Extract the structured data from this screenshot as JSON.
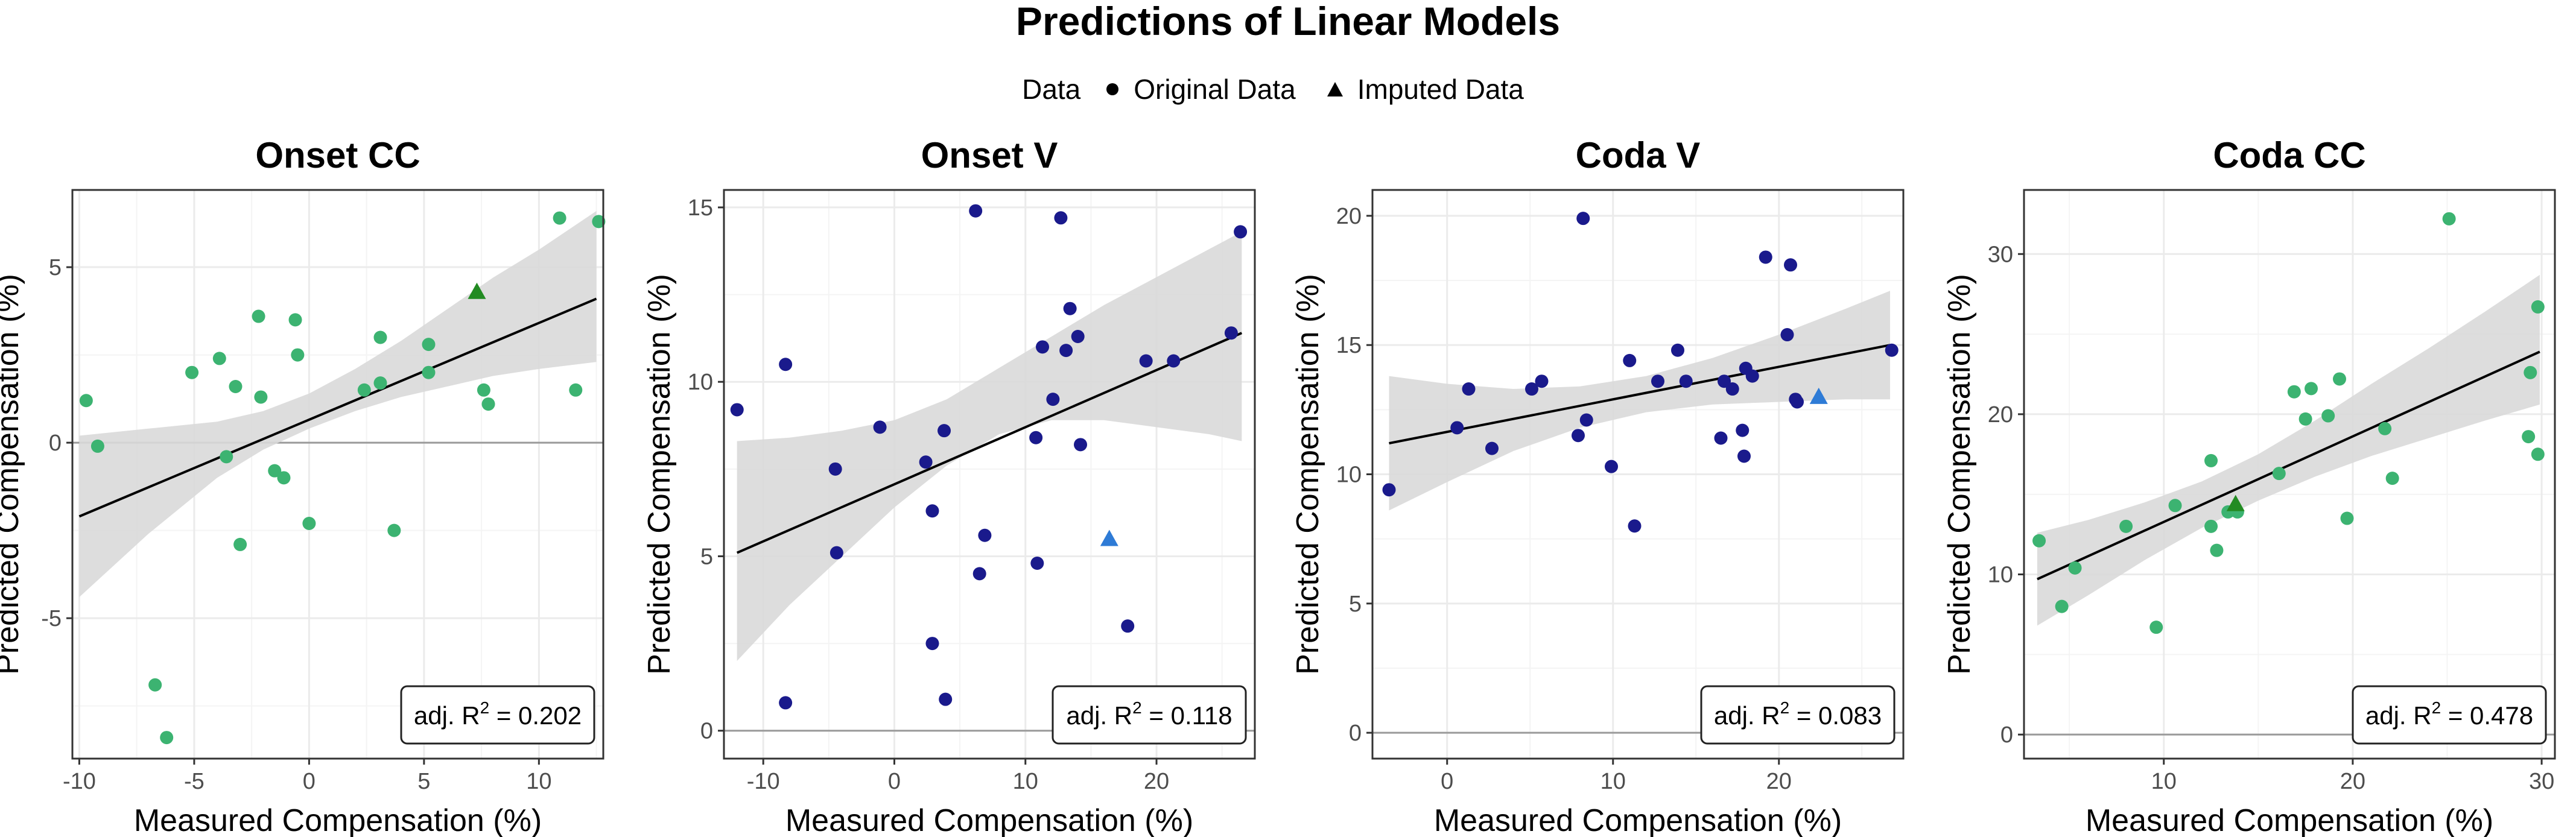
{
  "figure": {
    "title": "Predictions of Linear Models",
    "legend": {
      "title": "Data",
      "items": [
        {
          "label": "Original Data",
          "shape": "circle"
        },
        {
          "label": "Imputed Data",
          "shape": "triangle"
        }
      ]
    }
  },
  "colors": {
    "green": "#3cb371",
    "navy": "#1a1a8c",
    "dark_green": "#228b22",
    "blue": "#2e7bd6",
    "band": "#d9d9d9",
    "grid": "#ebebeb",
    "line": "#000000"
  },
  "chart_data": [
    {
      "type": "scatter",
      "title": "Onset CC",
      "xlabel": "Measured Compensation (%)",
      "ylabel": "Predicted Compensation (%)",
      "xlim": [
        -10.3,
        12.8
      ],
      "ylim": [
        -9,
        7.2
      ],
      "xticks": [
        -10,
        -5,
        0,
        5,
        10
      ],
      "yticks": [
        -5,
        0,
        5
      ],
      "hline": 0,
      "point_color": "#3cb371",
      "imputed_color": "#228b22",
      "r2_label": "adj. R",
      "r2_sup": "2",
      "r2_value": " = 0.202",
      "fit": {
        "x": [
          -10,
          12.5
        ],
        "y": [
          -2.1,
          4.1
        ]
      },
      "band": {
        "x": [
          -10,
          -7,
          -4,
          -2,
          0,
          2,
          4,
          6,
          8,
          10,
          12.5
        ],
        "lower": [
          -4.4,
          -2.6,
          -1.0,
          -0.2,
          0.4,
          0.9,
          1.3,
          1.6,
          1.9,
          2.1,
          2.3
        ],
        "upper": [
          0.2,
          0.4,
          0.6,
          0.9,
          1.4,
          2.1,
          2.9,
          3.8,
          4.7,
          5.5,
          6.6
        ]
      },
      "points": [
        {
          "x": -9.7,
          "y": 1.2
        },
        {
          "x": -9.2,
          "y": -0.1
        },
        {
          "x": -6.7,
          "y": -6.9
        },
        {
          "x": -6.2,
          "y": -8.4
        },
        {
          "x": -5.1,
          "y": 2.0
        },
        {
          "x": -3.9,
          "y": 2.4
        },
        {
          "x": -3.6,
          "y": -0.4
        },
        {
          "x": -3.2,
          "y": 1.6
        },
        {
          "x": -3.0,
          "y": -2.9
        },
        {
          "x": -2.2,
          "y": 3.6
        },
        {
          "x": -2.1,
          "y": 1.3
        },
        {
          "x": -1.5,
          "y": -0.8
        },
        {
          "x": -1.1,
          "y": -1.0
        },
        {
          "x": -0.6,
          "y": 3.5
        },
        {
          "x": -0.5,
          "y": 2.5
        },
        {
          "x": 0.0,
          "y": -2.3
        },
        {
          "x": 2.4,
          "y": 1.5
        },
        {
          "x": 3.1,
          "y": 3.0
        },
        {
          "x": 3.1,
          "y": 1.7
        },
        {
          "x": 3.7,
          "y": -2.5
        },
        {
          "x": 5.2,
          "y": 2.8
        },
        {
          "x": 5.2,
          "y": 2.0
        },
        {
          "x": 7.6,
          "y": 1.5
        },
        {
          "x": 7.8,
          "y": 1.1
        },
        {
          "x": 10.9,
          "y": 6.4
        },
        {
          "x": 11.6,
          "y": 1.5
        },
        {
          "x": 12.6,
          "y": 6.3
        }
      ],
      "imputed": [
        {
          "x": 7.3,
          "y": 4.3
        }
      ]
    },
    {
      "type": "scatter",
      "title": "Onset V",
      "xlabel": "Measured Compensation (%)",
      "ylabel": "Predicted Compensation (%)",
      "xlim": [
        -13,
        27.5
      ],
      "ylim": [
        -0.8,
        15.5
      ],
      "xticks": [
        -10,
        0,
        10,
        20
      ],
      "yticks": [
        0,
        5,
        10,
        15
      ],
      "hline": 0,
      "point_color": "#1a1a8c",
      "imputed_color": "#2e7bd6",
      "r2_label": "adj. R",
      "r2_sup": "2",
      "r2_value": " = 0.118",
      "fit": {
        "x": [
          -12,
          26.5
        ],
        "y": [
          5.1,
          11.4
        ]
      },
      "band": {
        "x": [
          -12,
          -8,
          -4,
          0,
          4,
          8,
          12,
          16,
          20,
          24,
          26.5
        ],
        "lower": [
          2.0,
          3.6,
          5.0,
          6.4,
          7.6,
          8.5,
          8.9,
          8.9,
          8.7,
          8.5,
          8.3
        ],
        "upper": [
          8.3,
          8.4,
          8.6,
          8.9,
          9.5,
          10.4,
          11.3,
          12.2,
          13.0,
          13.8,
          14.3
        ]
      },
      "points": [
        {
          "x": -12.0,
          "y": 9.2
        },
        {
          "x": -8.3,
          "y": 10.5
        },
        {
          "x": -8.3,
          "y": 0.8
        },
        {
          "x": -4.5,
          "y": 7.5
        },
        {
          "x": -4.4,
          "y": 5.1
        },
        {
          "x": -1.1,
          "y": 8.7
        },
        {
          "x": 2.4,
          "y": 7.7
        },
        {
          "x": 2.9,
          "y": 6.3
        },
        {
          "x": 2.9,
          "y": 2.5
        },
        {
          "x": 3.8,
          "y": 8.6
        },
        {
          "x": 3.9,
          "y": 0.9
        },
        {
          "x": 6.2,
          "y": 14.9
        },
        {
          "x": 6.5,
          "y": 4.5
        },
        {
          "x": 6.9,
          "y": 5.6
        },
        {
          "x": 10.8,
          "y": 8.4
        },
        {
          "x": 10.9,
          "y": 4.8
        },
        {
          "x": 11.3,
          "y": 11.0
        },
        {
          "x": 12.1,
          "y": 9.5
        },
        {
          "x": 12.7,
          "y": 14.7
        },
        {
          "x": 13.1,
          "y": 10.9
        },
        {
          "x": 13.4,
          "y": 12.1
        },
        {
          "x": 14.0,
          "y": 11.3
        },
        {
          "x": 14.2,
          "y": 8.2
        },
        {
          "x": 17.8,
          "y": 3.0
        },
        {
          "x": 19.2,
          "y": 10.6
        },
        {
          "x": 21.3,
          "y": 10.6
        },
        {
          "x": 25.7,
          "y": 11.4
        },
        {
          "x": 26.4,
          "y": 14.3
        }
      ],
      "imputed": [
        {
          "x": 16.4,
          "y": 5.5
        }
      ]
    },
    {
      "type": "scatter",
      "title": "Coda V",
      "xlabel": "Measured Compensation (%)",
      "ylabel": "Predicted Compensation (%)",
      "xlim": [
        -4.5,
        27.5
      ],
      "ylim": [
        -1,
        21
      ],
      "xticks": [
        0,
        10,
        20
      ],
      "yticks": [
        0,
        5,
        10,
        15,
        20
      ],
      "hline": 0,
      "point_color": "#1a1a8c",
      "imputed_color": "#2e7bd6",
      "r2_label": "adj. R",
      "r2_sup": "2",
      "r2_value": " = 0.083",
      "fit": {
        "x": [
          -3.5,
          26.7
        ],
        "y": [
          11.2,
          15.0
        ]
      },
      "band": {
        "x": [
          -3.5,
          0,
          4,
          8,
          12,
          16,
          20,
          24,
          26.7
        ],
        "lower": [
          8.6,
          9.7,
          10.9,
          11.8,
          12.4,
          12.7,
          12.8,
          12.9,
          12.9
        ],
        "upper": [
          13.8,
          13.5,
          13.3,
          13.4,
          13.8,
          14.5,
          15.4,
          16.4,
          17.1
        ]
      },
      "points": [
        {
          "x": -3.5,
          "y": 9.4
        },
        {
          "x": 0.6,
          "y": 11.8
        },
        {
          "x": 1.3,
          "y": 13.3
        },
        {
          "x": 2.7,
          "y": 11.0
        },
        {
          "x": 5.1,
          "y": 13.3
        },
        {
          "x": 5.7,
          "y": 13.6
        },
        {
          "x": 7.9,
          "y": 11.5
        },
        {
          "x": 8.2,
          "y": 19.9
        },
        {
          "x": 8.4,
          "y": 12.1
        },
        {
          "x": 9.9,
          "y": 10.3
        },
        {
          "x": 11.0,
          "y": 14.4
        },
        {
          "x": 11.3,
          "y": 8.0
        },
        {
          "x": 12.7,
          "y": 13.6
        },
        {
          "x": 13.9,
          "y": 14.8
        },
        {
          "x": 14.4,
          "y": 13.6
        },
        {
          "x": 16.5,
          "y": 11.4
        },
        {
          "x": 16.7,
          "y": 13.6
        },
        {
          "x": 17.2,
          "y": 13.3
        },
        {
          "x": 17.8,
          "y": 11.7
        },
        {
          "x": 17.9,
          "y": 10.7
        },
        {
          "x": 18.0,
          "y": 14.1
        },
        {
          "x": 18.4,
          "y": 13.8
        },
        {
          "x": 19.2,
          "y": 18.4
        },
        {
          "x": 20.5,
          "y": 15.4
        },
        {
          "x": 20.7,
          "y": 18.1
        },
        {
          "x": 21.0,
          "y": 12.9
        },
        {
          "x": 21.1,
          "y": 12.8
        },
        {
          "x": 26.8,
          "y": 14.8
        }
      ],
      "imputed": [
        {
          "x": 22.4,
          "y": 13.0
        }
      ]
    },
    {
      "type": "scatter",
      "title": "Coda CC",
      "xlabel": "Measured Compensation (%)",
      "ylabel": "Predicted Compensation (%)",
      "xlim": [
        2.6,
        30.7
      ],
      "ylim": [
        -1.5,
        34
      ],
      "xticks": [
        10,
        20,
        30
      ],
      "yticks": [
        0,
        10,
        20,
        30
      ],
      "hline": 0,
      "point_color": "#3cb371",
      "imputed_color": "#228b22",
      "r2_label": "adj. R",
      "r2_sup": "2",
      "r2_value": " = 0.478",
      "fit": {
        "x": [
          3.3,
          29.9
        ],
        "y": [
          9.7,
          23.9
        ]
      },
      "band": {
        "x": [
          3.3,
          6,
          9,
          12,
          15,
          18,
          21,
          24,
          27,
          29.9
        ],
        "lower": [
          6.8,
          8.7,
          10.9,
          12.9,
          14.6,
          16.1,
          17.4,
          18.5,
          19.6,
          20.6
        ],
        "upper": [
          12.6,
          13.4,
          14.5,
          15.8,
          17.5,
          19.6,
          21.9,
          24.1,
          26.4,
          28.7
        ]
      },
      "points": [
        {
          "x": 3.4,
          "y": 12.1
        },
        {
          "x": 4.6,
          "y": 8.0
        },
        {
          "x": 5.3,
          "y": 10.4
        },
        {
          "x": 8.0,
          "y": 13.0
        },
        {
          "x": 9.6,
          "y": 6.7
        },
        {
          "x": 10.6,
          "y": 14.3
        },
        {
          "x": 12.5,
          "y": 17.1
        },
        {
          "x": 12.5,
          "y": 13.0
        },
        {
          "x": 12.8,
          "y": 11.5
        },
        {
          "x": 13.4,
          "y": 13.9
        },
        {
          "x": 13.9,
          "y": 13.9
        },
        {
          "x": 16.1,
          "y": 16.3
        },
        {
          "x": 16.9,
          "y": 21.4
        },
        {
          "x": 17.5,
          "y": 19.7
        },
        {
          "x": 17.8,
          "y": 21.6
        },
        {
          "x": 18.7,
          "y": 19.9
        },
        {
          "x": 19.3,
          "y": 22.2
        },
        {
          "x": 19.7,
          "y": 13.5
        },
        {
          "x": 21.7,
          "y": 19.1
        },
        {
          "x": 22.1,
          "y": 16.0
        },
        {
          "x": 25.1,
          "y": 32.2
        },
        {
          "x": 29.3,
          "y": 18.6
        },
        {
          "x": 29.4,
          "y": 22.6
        },
        {
          "x": 29.8,
          "y": 26.7
        },
        {
          "x": 29.8,
          "y": 17.5
        }
      ],
      "imputed": [
        {
          "x": 13.8,
          "y": 14.4
        }
      ]
    }
  ]
}
